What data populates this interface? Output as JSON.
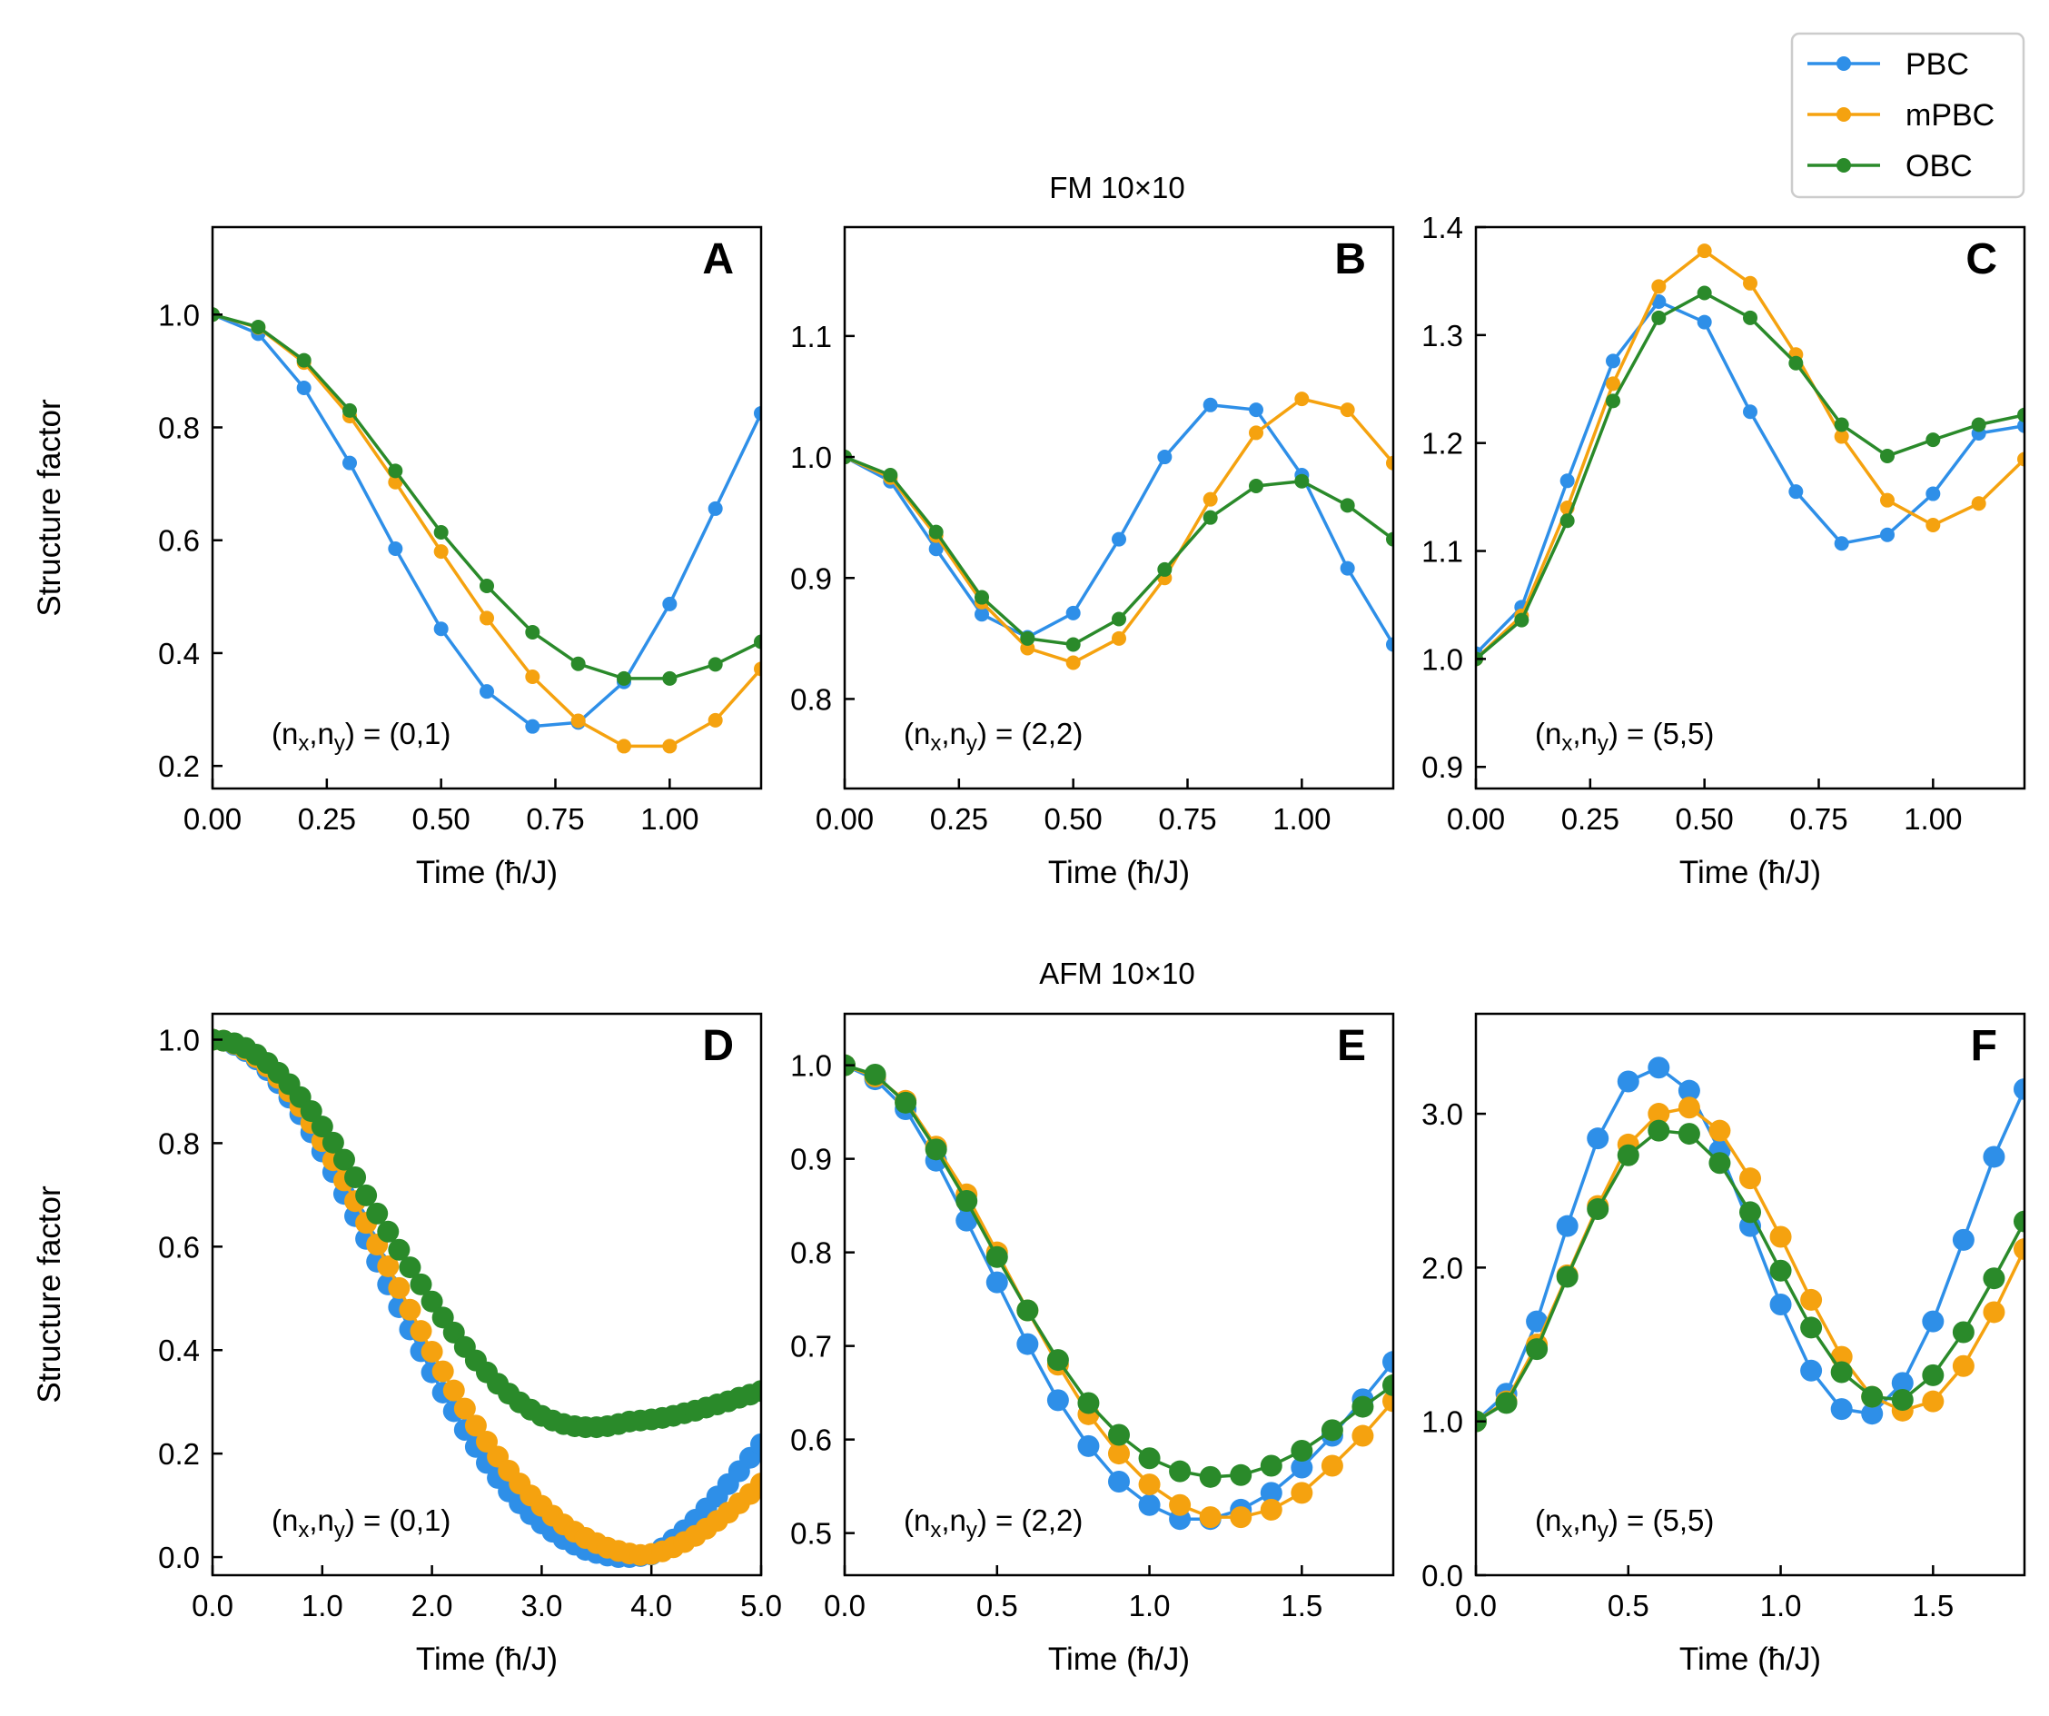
{
  "figure": {
    "row_titles": [
      "FM 10×10",
      "AFM 10×10"
    ],
    "y_axis_label": "Structure factor"
  },
  "legend": {
    "position": "top-right",
    "entries": [
      {
        "label": "PBC",
        "color": "#2E8FE8"
      },
      {
        "label": "mPBC",
        "color": "#F5A20F"
      },
      {
        "label": "OBC",
        "color": "#2A8A2A"
      }
    ]
  },
  "chart_data": [
    {
      "panel": "A",
      "type": "line",
      "title": "FM 10×10",
      "xlabel": "Time (ħ/J)",
      "ylabel": "Structure factor",
      "mode_label": "(n_x,n_y) = (0,1)",
      "xlim": [
        0,
        1.2
      ],
      "ylim": [
        0.16,
        1.155
      ],
      "xticks": [
        0,
        0.25,
        0.5,
        0.75,
        1.0
      ],
      "xtick_labels": [
        "0.00",
        "0.25",
        "0.50",
        "0.75",
        "1.00"
      ],
      "yticks": [
        0.2,
        0.4,
        0.6,
        0.8,
        1.0
      ],
      "ytick_labels": [
        "0.2",
        "0.4",
        "0.6",
        "0.8",
        "1.0"
      ],
      "marker_size": 8,
      "x": [
        0,
        0.1,
        0.2,
        0.3,
        0.4,
        0.5,
        0.6,
        0.7,
        0.8,
        0.9,
        1.0,
        1.1,
        1.2
      ],
      "series": [
        {
          "name": "PBC",
          "values": [
            1.0,
            0.966,
            0.87,
            0.737,
            0.585,
            0.443,
            0.332,
            0.27,
            0.277,
            0.349,
            0.487,
            0.656,
            0.825
          ]
        },
        {
          "name": "mPBC",
          "values": [
            1.0,
            0.977,
            0.915,
            0.82,
            0.703,
            0.58,
            0.462,
            0.358,
            0.28,
            0.235,
            0.235,
            0.281,
            0.372
          ]
        },
        {
          "name": "OBC",
          "values": [
            1.0,
            0.978,
            0.919,
            0.83,
            0.723,
            0.614,
            0.519,
            0.437,
            0.381,
            0.355,
            0.355,
            0.38,
            0.42
          ]
        }
      ]
    },
    {
      "panel": "B",
      "type": "line",
      "title": "FM 10×10",
      "xlabel": "Time (ħ/J)",
      "ylabel": "",
      "mode_label": "(n_x,n_y) = (2,2)",
      "xlim": [
        0,
        1.2
      ],
      "ylim": [
        0.726,
        1.19
      ],
      "xticks": [
        0,
        0.25,
        0.5,
        0.75,
        1.0
      ],
      "xtick_labels": [
        "0.00",
        "0.25",
        "0.50",
        "0.75",
        "1.00"
      ],
      "yticks": [
        0.8,
        0.9,
        1.0,
        1.1
      ],
      "ytick_labels": [
        "0.8",
        "0.9",
        "1.0",
        "1.1"
      ],
      "marker_size": 8,
      "x": [
        0,
        0.1,
        0.2,
        0.3,
        0.4,
        0.5,
        0.6,
        0.7,
        0.8,
        0.9,
        1.0,
        1.1,
        1.2
      ],
      "series": [
        {
          "name": "PBC",
          "values": [
            1.0,
            0.98,
            0.924,
            0.87,
            0.851,
            0.871,
            0.932,
            1.0,
            1.043,
            1.039,
            0.985,
            0.908,
            0.845
          ]
        },
        {
          "name": "mPBC",
          "values": [
            1.0,
            0.983,
            0.935,
            0.88,
            0.842,
            0.83,
            0.85,
            0.9,
            0.965,
            1.02,
            1.048,
            1.039,
            0.995
          ]
        },
        {
          "name": "OBC",
          "values": [
            1.0,
            0.985,
            0.938,
            0.884,
            0.85,
            0.845,
            0.866,
            0.907,
            0.95,
            0.976,
            0.98,
            0.96,
            0.932
          ]
        }
      ]
    },
    {
      "panel": "C",
      "type": "line",
      "title": "FM 10×10",
      "xlabel": "Time (ħ/J)",
      "ylabel": "",
      "mode_label": "(n_x,n_y) = (5,5)",
      "xlim": [
        0,
        1.2
      ],
      "ylim": [
        0.88,
        1.4
      ],
      "xticks": [
        0,
        0.25,
        0.5,
        0.75,
        1.0
      ],
      "xtick_labels": [
        "0.00",
        "0.25",
        "0.50",
        "0.75",
        "1.00"
      ],
      "yticks": [
        0.9,
        1.0,
        1.1,
        1.2,
        1.3,
        1.4
      ],
      "ytick_labels": [
        "0.9",
        "1.0",
        "1.1",
        "1.2",
        "1.3",
        "1.4"
      ],
      "marker_size": 8,
      "x": [
        0,
        0.1,
        0.2,
        0.3,
        0.4,
        0.5,
        0.6,
        0.7,
        0.8,
        0.9,
        1.0,
        1.1,
        1.2
      ],
      "series": [
        {
          "name": "PBC",
          "values": [
            1.005,
            1.048,
            1.165,
            1.276,
            1.331,
            1.312,
            1.229,
            1.155,
            1.107,
            1.115,
            1.153,
            1.209,
            1.216
          ]
        },
        {
          "name": "mPBC",
          "values": [
            1.0,
            1.04,
            1.14,
            1.255,
            1.345,
            1.378,
            1.348,
            1.282,
            1.206,
            1.147,
            1.124,
            1.144,
            1.185
          ]
        },
        {
          "name": "OBC",
          "values": [
            1.0,
            1.036,
            1.128,
            1.239,
            1.316,
            1.339,
            1.316,
            1.274,
            1.217,
            1.188,
            1.203,
            1.217,
            1.226
          ]
        }
      ]
    },
    {
      "panel": "D",
      "type": "line",
      "title": "AFM 10×10",
      "xlabel": "Time (ħ/J)",
      "ylabel": "Structure factor",
      "mode_label": "(n_x,n_y) = (0,1)",
      "xlim": [
        0,
        5.0
      ],
      "ylim": [
        -0.035,
        1.05
      ],
      "xticks": [
        0,
        1,
        2,
        3,
        4,
        5
      ],
      "xtick_labels": [
        "0.0",
        "1.0",
        "2.0",
        "3.0",
        "4.0",
        "5.0"
      ],
      "yticks": [
        0.0,
        0.2,
        0.4,
        0.6,
        0.8,
        1.0
      ],
      "ytick_labels": [
        "0.0",
        "0.2",
        "0.4",
        "0.6",
        "0.8",
        "1.0"
      ],
      "marker_size": 12,
      "x": [
        0,
        0.1,
        0.2,
        0.3,
        0.4,
        0.5,
        0.6,
        0.7,
        0.8,
        0.9,
        1.0,
        1.1,
        1.2,
        1.3,
        1.4,
        1.5,
        1.6,
        1.7,
        1.8,
        1.9,
        2.0,
        2.1,
        2.2,
        2.3,
        2.4,
        2.5,
        2.6,
        2.7,
        2.8,
        2.9,
        3.0,
        3.1,
        3.2,
        3.3,
        3.4,
        3.5,
        3.6,
        3.7,
        3.8,
        3.9,
        4.0,
        4.1,
        4.2,
        4.3,
        4.4,
        4.5,
        4.6,
        4.7,
        4.8,
        4.9,
        5.0
      ],
      "series": [
        {
          "name": "PBC",
          "values": [
            1.0,
            0.998,
            0.99,
            0.978,
            0.962,
            0.941,
            0.916,
            0.888,
            0.856,
            0.821,
            0.784,
            0.744,
            0.702,
            0.659,
            0.615,
            0.571,
            0.527,
            0.483,
            0.44,
            0.398,
            0.357,
            0.318,
            0.282,
            0.246,
            0.213,
            0.182,
            0.153,
            0.127,
            0.104,
            0.083,
            0.065,
            0.049,
            0.035,
            0.024,
            0.014,
            0.008,
            0.003,
            0.0,
            0.0,
            0.002,
            0.005,
            0.017,
            0.034,
            0.052,
            0.072,
            0.094,
            0.117,
            0.141,
            0.166,
            0.192,
            0.218
          ]
        },
        {
          "name": "mPBC",
          "values": [
            1.0,
            0.998,
            0.992,
            0.981,
            0.966,
            0.948,
            0.926,
            0.9,
            0.871,
            0.839,
            0.804,
            0.767,
            0.728,
            0.688,
            0.646,
            0.604,
            0.562,
            0.52,
            0.478,
            0.437,
            0.397,
            0.359,
            0.322,
            0.287,
            0.254,
            0.223,
            0.194,
            0.167,
            0.142,
            0.119,
            0.099,
            0.08,
            0.063,
            0.049,
            0.037,
            0.027,
            0.018,
            0.012,
            0.007,
            0.004,
            0.006,
            0.011,
            0.019,
            0.029,
            0.041,
            0.055,
            0.07,
            0.086,
            0.104,
            0.122,
            0.142
          ]
        },
        {
          "name": "OBC",
          "values": [
            1.0,
            0.998,
            0.993,
            0.984,
            0.971,
            0.955,
            0.936,
            0.914,
            0.889,
            0.862,
            0.832,
            0.801,
            0.768,
            0.734,
            0.699,
            0.664,
            0.629,
            0.594,
            0.56,
            0.527,
            0.494,
            0.463,
            0.434,
            0.406,
            0.38,
            0.357,
            0.335,
            0.316,
            0.299,
            0.285,
            0.273,
            0.264,
            0.257,
            0.253,
            0.251,
            0.251,
            0.253,
            0.257,
            0.262,
            0.264,
            0.266,
            0.269,
            0.273,
            0.278,
            0.283,
            0.289,
            0.295,
            0.301,
            0.308,
            0.314,
            0.321
          ]
        }
      ]
    },
    {
      "panel": "E",
      "type": "line",
      "title": "AFM 10×10",
      "xlabel": "Time (ħ/J)",
      "ylabel": "",
      "mode_label": "(n_x,n_y) = (2,2)",
      "xlim": [
        0,
        1.8
      ],
      "ylim": [
        0.455,
        1.055
      ],
      "xticks": [
        0,
        0.5,
        1.0,
        1.5
      ],
      "xtick_labels": [
        "0.0",
        "0.5",
        "1.0",
        "1.5"
      ],
      "yticks": [
        0.5,
        0.6,
        0.7,
        0.8,
        0.9,
        1.0
      ],
      "ytick_labels": [
        "0.5",
        "0.6",
        "0.7",
        "0.8",
        "0.9",
        "1.0"
      ],
      "marker_size": 12,
      "x": [
        0,
        0.1,
        0.2,
        0.3,
        0.4,
        0.5,
        0.6,
        0.7,
        0.8,
        0.9,
        1.0,
        1.1,
        1.2,
        1.3,
        1.4,
        1.5,
        1.6,
        1.7,
        1.8
      ],
      "series": [
        {
          "name": "PBC",
          "values": [
            1.0,
            0.985,
            0.953,
            0.898,
            0.834,
            0.768,
            0.702,
            0.642,
            0.593,
            0.555,
            0.53,
            0.515,
            0.515,
            0.525,
            0.543,
            0.57,
            0.604,
            0.643,
            0.683
          ]
        },
        {
          "name": "mPBC",
          "values": [
            1.0,
            0.988,
            0.962,
            0.913,
            0.862,
            0.8,
            0.738,
            0.68,
            0.627,
            0.585,
            0.552,
            0.53,
            0.517,
            0.517,
            0.525,
            0.543,
            0.572,
            0.604,
            0.641
          ]
        },
        {
          "name": "OBC",
          "values": [
            1.0,
            0.99,
            0.96,
            0.91,
            0.855,
            0.795,
            0.738,
            0.685,
            0.639,
            0.605,
            0.58,
            0.566,
            0.56,
            0.562,
            0.572,
            0.588,
            0.61,
            0.635,
            0.658
          ]
        }
      ]
    },
    {
      "panel": "F",
      "type": "line",
      "title": "AFM 10×10",
      "xlabel": "Time (ħ/J)",
      "ylabel": "",
      "mode_label": "(n_x,n_y) = (5,5)",
      "xlim": [
        0,
        1.8
      ],
      "ylim": [
        0.0,
        3.65
      ],
      "xticks": [
        0,
        0.5,
        1.0,
        1.5
      ],
      "xtick_labels": [
        "0.0",
        "0.5",
        "1.0",
        "1.5"
      ],
      "yticks": [
        0.0,
        1.0,
        2.0,
        3.0
      ],
      "ytick_labels": [
        "0.0",
        "1.0",
        "2.0",
        "3.0"
      ],
      "marker_size": 12,
      "x": [
        0,
        0.1,
        0.2,
        0.3,
        0.4,
        0.5,
        0.6,
        0.7,
        0.8,
        0.9,
        1.0,
        1.1,
        1.2,
        1.3,
        1.4,
        1.5,
        1.6,
        1.7,
        1.8
      ],
      "series": [
        {
          "name": "PBC",
          "values": [
            1.0,
            1.18,
            1.65,
            2.27,
            2.84,
            3.21,
            3.3,
            3.15,
            2.76,
            2.27,
            1.76,
            1.33,
            1.08,
            1.05,
            1.25,
            1.65,
            2.18,
            2.72,
            3.16
          ]
        },
        {
          "name": "mPBC",
          "values": [
            1.0,
            1.13,
            1.5,
            1.95,
            2.4,
            2.8,
            3.0,
            3.04,
            2.89,
            2.58,
            2.2,
            1.79,
            1.42,
            1.16,
            1.07,
            1.13,
            1.36,
            1.71,
            2.12
          ]
        },
        {
          "name": "OBC",
          "values": [
            1.0,
            1.12,
            1.47,
            1.94,
            2.38,
            2.73,
            2.89,
            2.87,
            2.68,
            2.36,
            1.98,
            1.61,
            1.32,
            1.16,
            1.14,
            1.3,
            1.58,
            1.93,
            2.3
          ]
        }
      ]
    }
  ]
}
